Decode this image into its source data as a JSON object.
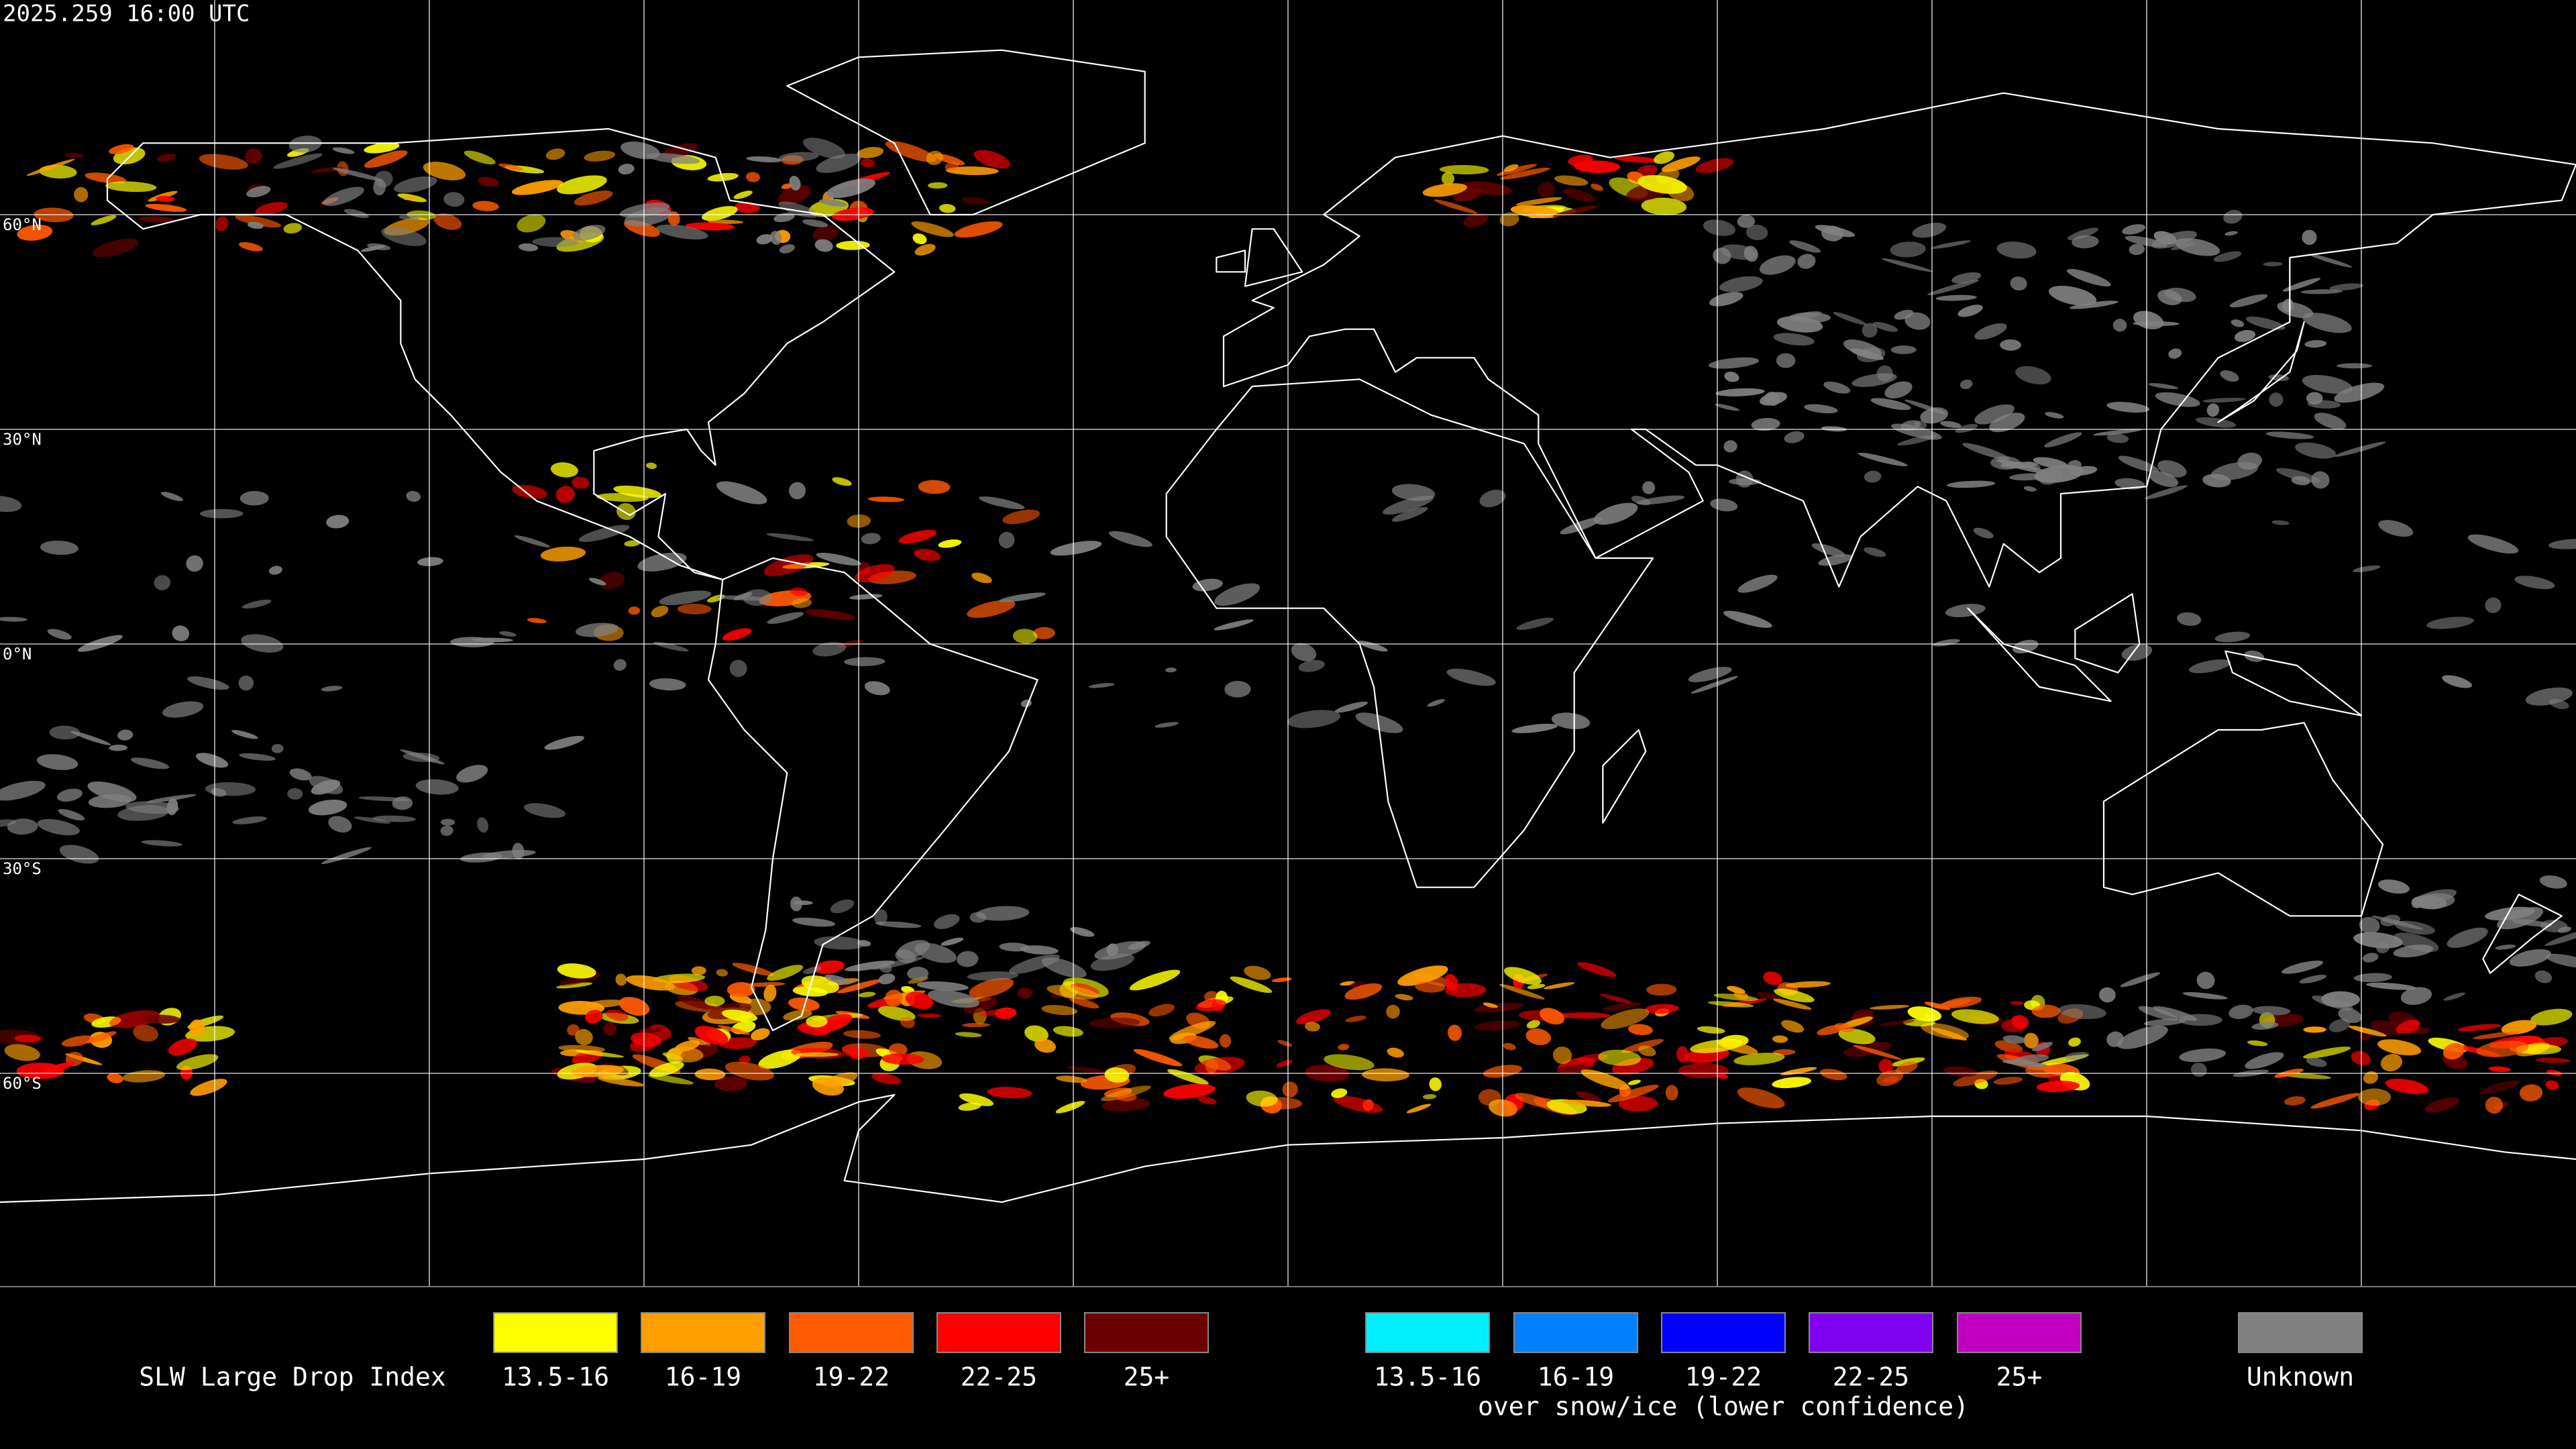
{
  "timestamp": "2025.259 16:00 UTC",
  "latitude_labels": [
    "60°N",
    "30°N",
    "0°N",
    "30°S",
    "60°S"
  ],
  "legend": {
    "title": "SLW Large Drop Index",
    "groups": [
      {
        "items": [
          {
            "label": "13.5-16",
            "color": "#ffff00"
          },
          {
            "label": "16-19",
            "color": "#ffa000"
          },
          {
            "label": "19-22",
            "color": "#ff5a00"
          },
          {
            "label": "22-25",
            "color": "#ff0000"
          },
          {
            "label": "25+",
            "color": "#6b0000"
          }
        ]
      },
      {
        "items": [
          {
            "label": "13.5-16",
            "color": "#00f0ff"
          },
          {
            "label": "16-19",
            "color": "#0080ff"
          },
          {
            "label": "19-22",
            "color": "#0000ff"
          },
          {
            "label": "22-25",
            "color": "#8000f0"
          },
          {
            "label": "25+",
            "color": "#c000c0"
          }
        ],
        "caption": "over snow/ice (lower confidence)"
      },
      {
        "items": [
          {
            "label": "Unknown",
            "color": "#808080"
          }
        ]
      }
    ]
  }
}
